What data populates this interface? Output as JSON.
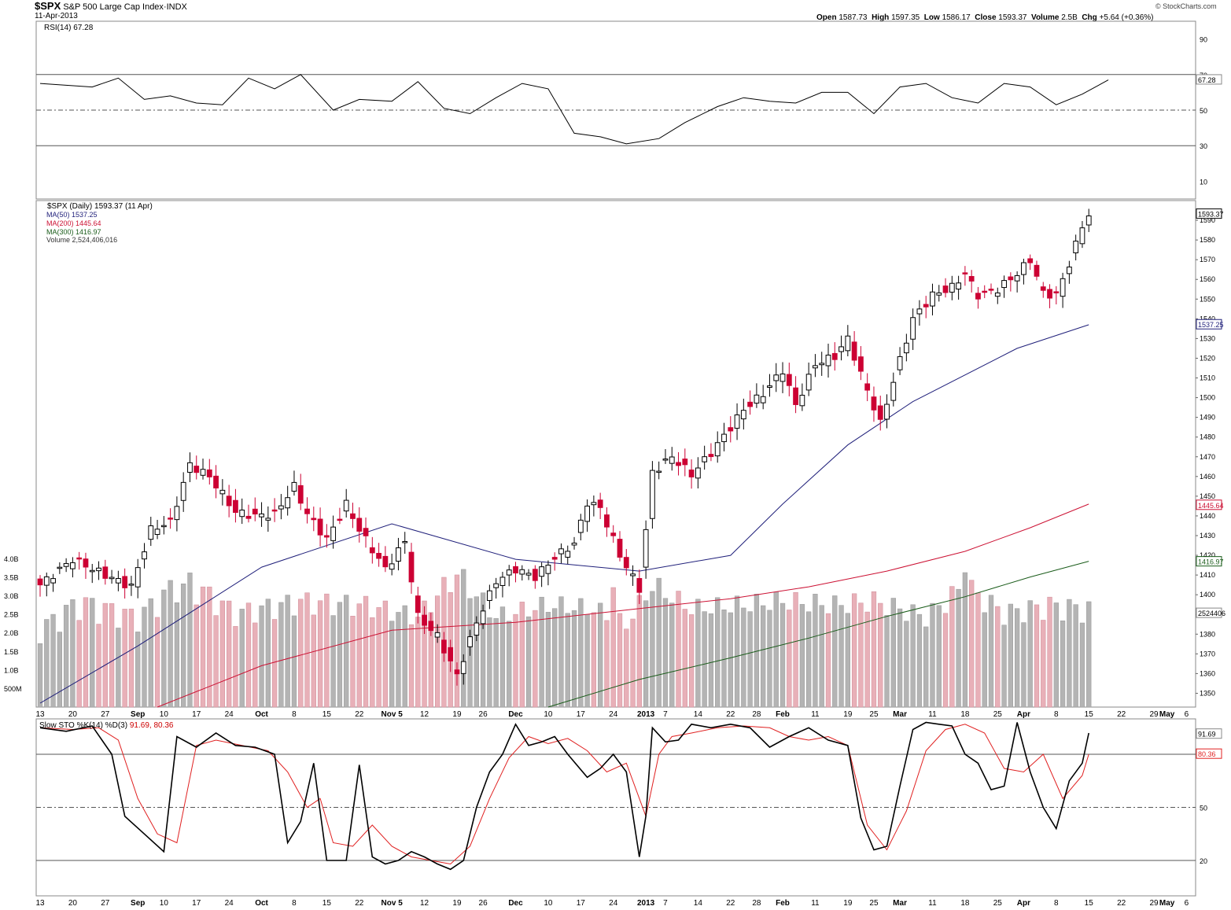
{
  "header": {
    "symbol": "$SPX",
    "name": "S&P 500 Large Cap Index",
    "exchange": "INDX",
    "date": "11-Apr-2013",
    "brand": "© StockCharts.com",
    "quote": [
      {
        "label": "Open",
        "value": "1587.73"
      },
      {
        "label": "High",
        "value": "1597.35"
      },
      {
        "label": "Low",
        "value": "1586.17"
      },
      {
        "label": "Close",
        "value": "1593.37"
      },
      {
        "label": "Volume",
        "value": "2.5B"
      },
      {
        "label": "Chg",
        "value": "+5.64 (+0.36%)"
      }
    ]
  },
  "colors": {
    "up": "#ffffff",
    "down": "#cc0033",
    "ma50": "#1f1f7a",
    "ma200": "#cc1133",
    "ma300": "#1a5c1a",
    "vol_down": "#e8b0b8",
    "vol_up": "#b4b4b4",
    "rsi_fill": "#4a7a4a"
  },
  "chart_data": [
    {
      "type": "line",
      "panel": "rsi",
      "legend": "RSI(14) 67.28",
      "x_index": [
        0,
        4,
        8,
        12,
        16,
        20,
        24,
        28,
        32,
        36,
        40,
        45,
        49,
        54,
        58,
        62,
        66,
        70,
        74,
        78,
        82,
        86,
        90,
        95,
        99,
        104,
        108,
        112,
        116,
        120,
        124,
        128,
        132,
        136,
        140,
        144,
        148,
        152,
        156,
        160,
        164
      ],
      "values": [
        65,
        64,
        63,
        68,
        56,
        58,
        54,
        53,
        68,
        62,
        70,
        50,
        56,
        55,
        66,
        51,
        48,
        57,
        65,
        62,
        37,
        35,
        31,
        34,
        43,
        52,
        57,
        55,
        54,
        60,
        60,
        48,
        63,
        65,
        57,
        54,
        65,
        63,
        53,
        59,
        67
      ],
      "ylim": [
        0,
        100
      ],
      "yticks": [
        10,
        30,
        50,
        70,
        90
      ],
      "reference_lines": [
        30,
        50,
        70
      ],
      "last_value": "67.28"
    },
    {
      "type": "candlestick",
      "panel": "price",
      "legend": {
        "main": "$SPX (Daily) 1593.37 (11 Apr)",
        "ma50": "MA(50) 1537.25",
        "ma200": "MA(200) 1445.64",
        "ma300": "MA(300) 1416.97",
        "volume": "Volume 2,524,406,016"
      },
      "ylim": [
        1343,
        1600
      ],
      "yticks": [
        1350,
        1360,
        1370,
        1380,
        1390,
        1400,
        1410,
        1420,
        1430,
        1440,
        1450,
        1460,
        1470,
        1480,
        1490,
        1500,
        1510,
        1520,
        1530,
        1540,
        1550,
        1560,
        1570,
        1580,
        1590
      ],
      "volume_ticks": [
        "500M",
        "1.0B",
        "1.5B",
        "2.0B",
        "2.5B",
        "3.0B",
        "3.5B",
        "4.0B"
      ],
      "last_labels": {
        "close": "1593.37",
        "ma50": "1537.25",
        "ma200": "1445.64",
        "ma300": "1416.97",
        "volume": "2524406"
      },
      "x_labels": [
        {
          "i": 0,
          "t": "13"
        },
        {
          "i": 5,
          "t": "20"
        },
        {
          "i": 10,
          "t": "27"
        },
        {
          "i": 15,
          "t": "Sep",
          "bold": true
        },
        {
          "i": 19,
          "t": "10"
        },
        {
          "i": 24,
          "t": "17"
        },
        {
          "i": 29,
          "t": "24"
        },
        {
          "i": 34,
          "t": "Oct",
          "bold": true
        },
        {
          "i": 39,
          "t": "8"
        },
        {
          "i": 44,
          "t": "15"
        },
        {
          "i": 49,
          "t": "22"
        },
        {
          "i": 54,
          "t": "Nov 5",
          "bold": true
        },
        {
          "i": 59,
          "t": "12"
        },
        {
          "i": 64,
          "t": "19"
        },
        {
          "i": 68,
          "t": "26"
        },
        {
          "i": 73,
          "t": "Dec",
          "bold": true
        },
        {
          "i": 78,
          "t": "10"
        },
        {
          "i": 83,
          "t": "17"
        },
        {
          "i": 88,
          "t": "24"
        },
        {
          "i": 93,
          "t": "2013",
          "bold": true
        },
        {
          "i": 96,
          "t": "7"
        },
        {
          "i": 101,
          "t": "14"
        },
        {
          "i": 106,
          "t": "22"
        },
        {
          "i": 110,
          "t": "28"
        },
        {
          "i": 114,
          "t": "Feb",
          "bold": true
        },
        {
          "i": 119,
          "t": "11"
        },
        {
          "i": 124,
          "t": "19"
        },
        {
          "i": 128,
          "t": "25"
        },
        {
          "i": 132,
          "t": "Mar",
          "bold": true
        },
        {
          "i": 137,
          "t": "11"
        },
        {
          "i": 142,
          "t": "18"
        },
        {
          "i": 147,
          "t": "25"
        },
        {
          "i": 151,
          "t": "Apr",
          "bold": true
        },
        {
          "i": 156,
          "t": "8"
        },
        {
          "i": 161,
          "t": "15"
        },
        {
          "i": 166,
          "t": "22"
        },
        {
          "i": 171,
          "t": "29"
        },
        {
          "i": 173,
          "t": "May",
          "bold": true
        },
        {
          "i": 176,
          "t": "6"
        }
      ],
      "ohlc_key": [
        {
          "i": 0,
          "c": 1405
        },
        {
          "i": 5,
          "c": 1418
        },
        {
          "i": 10,
          "c": 1410
        },
        {
          "i": 14,
          "c": 1404
        },
        {
          "i": 17,
          "c": 1433
        },
        {
          "i": 20,
          "c": 1437
        },
        {
          "i": 23,
          "c": 1466
        },
        {
          "i": 26,
          "c": 1460
        },
        {
          "i": 30,
          "c": 1442
        },
        {
          "i": 33,
          "c": 1440
        },
        {
          "i": 36,
          "c": 1441
        },
        {
          "i": 39,
          "c": 1455
        },
        {
          "i": 41,
          "c": 1441
        },
        {
          "i": 44,
          "c": 1428
        },
        {
          "i": 47,
          "c": 1446
        },
        {
          "i": 49,
          "c": 1433
        },
        {
          "i": 53,
          "c": 1413
        },
        {
          "i": 56,
          "c": 1427
        },
        {
          "i": 58,
          "c": 1389
        },
        {
          "i": 61,
          "c": 1379
        },
        {
          "i": 64,
          "c": 1359
        },
        {
          "i": 67,
          "c": 1386
        },
        {
          "i": 70,
          "c": 1407
        },
        {
          "i": 73,
          "c": 1413
        },
        {
          "i": 76,
          "c": 1409
        },
        {
          "i": 79,
          "c": 1419
        },
        {
          "i": 82,
          "c": 1426
        },
        {
          "i": 84,
          "c": 1447
        },
        {
          "i": 86,
          "c": 1444
        },
        {
          "i": 89,
          "c": 1420
        },
        {
          "i": 92,
          "c": 1403
        },
        {
          "i": 94,
          "c": 1462
        },
        {
          "i": 97,
          "c": 1470
        },
        {
          "i": 100,
          "c": 1461
        },
        {
          "i": 103,
          "c": 1472
        },
        {
          "i": 106,
          "c": 1485
        },
        {
          "i": 108,
          "c": 1494
        },
        {
          "i": 111,
          "c": 1502
        },
        {
          "i": 114,
          "c": 1514
        },
        {
          "i": 116,
          "c": 1496
        },
        {
          "i": 119,
          "c": 1517
        },
        {
          "i": 122,
          "c": 1521
        },
        {
          "i": 124,
          "c": 1530
        },
        {
          "i": 126,
          "c": 1512
        },
        {
          "i": 129,
          "c": 1487
        },
        {
          "i": 132,
          "c": 1519
        },
        {
          "i": 134,
          "c": 1540
        },
        {
          "i": 137,
          "c": 1552
        },
        {
          "i": 140,
          "c": 1556
        },
        {
          "i": 142,
          "c": 1563
        },
        {
          "i": 144,
          "c": 1552
        },
        {
          "i": 147,
          "c": 1555
        },
        {
          "i": 150,
          "c": 1563
        },
        {
          "i": 152,
          "c": 1570
        },
        {
          "i": 154,
          "c": 1553
        },
        {
          "i": 156,
          "c": 1552
        },
        {
          "i": 158,
          "c": 1568
        },
        {
          "i": 160,
          "c": 1587
        },
        {
          "i": 161,
          "c": 1593
        }
      ],
      "ma50": {
        "x": [
          0,
          15,
          34,
          54,
          73,
          92,
          106,
          114,
          124,
          134,
          150,
          161
        ],
        "values": [
          1345,
          1374,
          1414,
          1436,
          1418,
          1412,
          1420,
          1446,
          1476,
          1498,
          1525,
          1537
        ]
      },
      "ma200": {
        "x": [
          18,
          34,
          54,
          73,
          92,
          106,
          118,
          130,
          142,
          152,
          161
        ],
        "values": [
          1343,
          1364,
          1382,
          1386,
          1393,
          1398,
          1404,
          1412,
          1422,
          1434,
          1446
        ]
      },
      "ma300": {
        "x": [
          78,
          92,
          106,
          118,
          130,
          142,
          152,
          161
        ],
        "values": [
          1343,
          1357,
          1368,
          1378,
          1389,
          1399,
          1409,
          1417
        ]
      },
      "volume_key": {
        "x": [
          0,
          6,
          15,
          22,
          30,
          40,
          50,
          58,
          64,
          70,
          78,
          85,
          90,
          94,
          100,
          108,
          114,
          122,
          128,
          136,
          142,
          148,
          155,
          161
        ],
        "values": [
          2.0,
          2.7,
          2.3,
          3.3,
          2.4,
          2.7,
          2.6,
          2.3,
          3.4,
          2.3,
          2.6,
          2.5,
          2.1,
          3.1,
          2.5,
          2.6,
          2.7,
          2.6,
          2.7,
          2.3,
          3.1,
          2.4,
          2.6,
          2.5
        ]
      }
    },
    {
      "type": "line",
      "panel": "stochastic",
      "legend": {
        "k": "Slow STO %K(14) %D(3)",
        "values": "91.69, 80.36"
      },
      "k": {
        "x": [
          0,
          4,
          8,
          11,
          13,
          16,
          19,
          21,
          24,
          27,
          30,
          33,
          36,
          38,
          40,
          42,
          44,
          47,
          49,
          51,
          53,
          55,
          57,
          59,
          61,
          63,
          65,
          67,
          69,
          71,
          73,
          75,
          77,
          79,
          81,
          84,
          86,
          88,
          90,
          92,
          93,
          94,
          96,
          98,
          100,
          103,
          106,
          109,
          112,
          115,
          118,
          121,
          124,
          126,
          128,
          130,
          132,
          134,
          136,
          138,
          140,
          142,
          144,
          146,
          148,
          150,
          152,
          154,
          156,
          158,
          160,
          161
        ],
        "values": [
          95,
          93,
          96,
          80,
          45,
          35,
          25,
          90,
          84,
          92,
          85,
          84,
          80,
          30,
          42,
          75,
          20,
          20,
          74,
          22,
          18,
          20,
          25,
          22,
          18,
          15,
          20,
          50,
          70,
          80,
          97,
          85,
          87,
          90,
          80,
          67,
          72,
          80,
          70,
          22,
          45,
          95,
          87,
          88,
          97,
          95,
          97,
          95,
          84,
          90,
          95,
          88,
          85,
          44,
          26,
          28,
          62,
          94,
          98,
          97,
          96,
          80,
          75,
          60,
          62,
          98,
          70,
          50,
          38,
          65,
          75,
          92
        ]
      },
      "d": {
        "x": [
          0,
          5,
          9,
          12,
          15,
          18,
          21,
          24,
          27,
          31,
          35,
          38,
          41,
          43,
          45,
          48,
          51,
          54,
          57,
          60,
          63,
          66,
          69,
          72,
          75,
          78,
          81,
          84,
          87,
          90,
          93,
          95,
          97,
          100,
          104,
          108,
          112,
          115,
          118,
          121,
          124,
          127,
          130,
          133,
          136,
          139,
          142,
          145,
          148,
          151,
          154,
          157,
          160,
          161
        ],
        "values": [
          95,
          94,
          95,
          88,
          55,
          35,
          30,
          85,
          88,
          85,
          82,
          70,
          50,
          55,
          30,
          28,
          40,
          28,
          22,
          20,
          18,
          28,
          55,
          78,
          90,
          86,
          89,
          82,
          70,
          75,
          45,
          80,
          90,
          92,
          95,
          96,
          95,
          90,
          88,
          90,
          85,
          40,
          26,
          48,
          82,
          94,
          97,
          92,
          72,
          70,
          80,
          55,
          68,
          80
        ]
      },
      "ylim": [
        0,
        100
      ],
      "yticks": [
        20,
        50
      ],
      "reference_lines": [
        20,
        50,
        80
      ],
      "last_values": {
        "k": "91.69",
        "d": "80.36"
      }
    }
  ]
}
